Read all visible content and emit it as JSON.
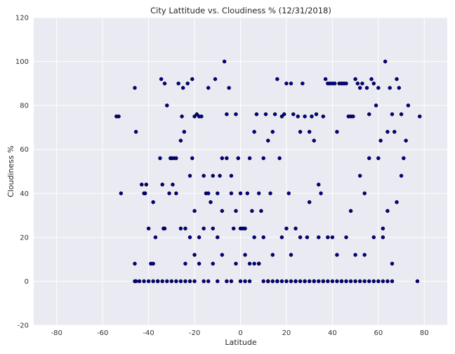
{
  "chart_data": {
    "type": "scatter",
    "title": "City Lattitude vs. Cloudiness % (12/31/2018)",
    "xlabel": "Latitude",
    "ylabel": "Cloudiness %",
    "xlim": [
      -90,
      90
    ],
    "ylim": [
      -20,
      120
    ],
    "xticks": [
      -80,
      -60,
      -40,
      -20,
      0,
      20,
      40,
      60,
      80
    ],
    "yticks": [
      -20,
      0,
      20,
      40,
      60,
      80,
      100,
      120
    ],
    "grid": true,
    "background_color": "#eaeaf2",
    "grid_color": "#ffffff",
    "marker_color": "#00008b",
    "marker_edge_color": "#000000",
    "points": [
      [
        -54,
        75
      ],
      [
        -53,
        75
      ],
      [
        -52,
        40
      ],
      [
        -46,
        88
      ],
      [
        -45.5,
        68
      ],
      [
        -46,
        8
      ],
      [
        -46,
        0
      ],
      [
        -45.5,
        0
      ],
      [
        -43,
        44
      ],
      [
        -42,
        40
      ],
      [
        -41.5,
        40
      ],
      [
        -41,
        44
      ],
      [
        -40,
        24
      ],
      [
        -39,
        8
      ],
      [
        -38,
        8
      ],
      [
        -38,
        36
      ],
      [
        -37,
        20
      ],
      [
        -36,
        0
      ],
      [
        -35,
        56
      ],
      [
        -34.5,
        92
      ],
      [
        -34,
        44
      ],
      [
        -33.5,
        24
      ],
      [
        -33,
        24
      ],
      [
        -33,
        90
      ],
      [
        -32,
        80
      ],
      [
        -31,
        40
      ],
      [
        -30.5,
        56
      ],
      [
        -30,
        56
      ],
      [
        -29.5,
        44
      ],
      [
        -29,
        56
      ],
      [
        -28,
        56
      ],
      [
        -27,
        90
      ],
      [
        -26,
        64
      ],
      [
        -25.5,
        75
      ],
      [
        -25,
        88
      ],
      [
        -24.5,
        68
      ],
      [
        -24,
        24
      ],
      [
        -23,
        90
      ],
      [
        -22,
        48
      ],
      [
        -21,
        56
      ],
      [
        -21,
        92
      ],
      [
        -20,
        75
      ],
      [
        -20,
        32
      ],
      [
        -19,
        76
      ],
      [
        -18,
        75
      ],
      [
        -17,
        75
      ],
      [
        -16,
        48
      ],
      [
        -15,
        40
      ],
      [
        -14,
        88
      ],
      [
        -13,
        36
      ],
      [
        -12,
        48
      ],
      [
        -11,
        92
      ],
      [
        -10,
        40
      ],
      [
        -9,
        48
      ],
      [
        -8,
        56
      ],
      [
        -7,
        100
      ],
      [
        -6,
        76
      ],
      [
        -5,
        88
      ],
      [
        -4,
        48
      ],
      [
        -3,
        24
      ],
      [
        -2,
        76
      ],
      [
        -1,
        56
      ],
      [
        0,
        24
      ],
      [
        1,
        24
      ],
      [
        2,
        24
      ],
      [
        3,
        40
      ],
      [
        4,
        56
      ],
      [
        5,
        32
      ],
      [
        6,
        68
      ],
      [
        7,
        76
      ],
      [
        8,
        40
      ],
      [
        9,
        32
      ],
      [
        10,
        56
      ],
      [
        11,
        76
      ],
      [
        12,
        64
      ],
      [
        13,
        40
      ],
      [
        14,
        68
      ],
      [
        15,
        76
      ],
      [
        16,
        92
      ],
      [
        17,
        56
      ],
      [
        18,
        75
      ],
      [
        19,
        76
      ],
      [
        20,
        90
      ],
      [
        21,
        40
      ],
      [
        22,
        90
      ],
      [
        23,
        76
      ],
      [
        24,
        24
      ],
      [
        25,
        75
      ],
      [
        26,
        68
      ],
      [
        27,
        90
      ],
      [
        28,
        75
      ],
      [
        29,
        20
      ],
      [
        30,
        68
      ],
      [
        31,
        75
      ],
      [
        32,
        64
      ],
      [
        33,
        76
      ],
      [
        34,
        44
      ],
      [
        35,
        40
      ],
      [
        36,
        75
      ],
      [
        37,
        92
      ],
      [
        38,
        90
      ],
      [
        39,
        90
      ],
      [
        40,
        90
      ],
      [
        41,
        90
      ],
      [
        42,
        68
      ],
      [
        43,
        90
      ],
      [
        44,
        90
      ],
      [
        45,
        90
      ],
      [
        46,
        90
      ],
      [
        47,
        75
      ],
      [
        48,
        75
      ],
      [
        49,
        75
      ],
      [
        50,
        92
      ],
      [
        51,
        90
      ],
      [
        52,
        88
      ],
      [
        53,
        90
      ],
      [
        54,
        40
      ],
      [
        55,
        88
      ],
      [
        56,
        76
      ],
      [
        57,
        92
      ],
      [
        58,
        90
      ],
      [
        59,
        80
      ],
      [
        60,
        88
      ],
      [
        61,
        64
      ],
      [
        62,
        24
      ],
      [
        63,
        100
      ],
      [
        64,
        68
      ],
      [
        65,
        88
      ],
      [
        66,
        76
      ],
      [
        67,
        68
      ],
      [
        68,
        92
      ],
      [
        69,
        88
      ],
      [
        70,
        76
      ],
      [
        71,
        56
      ],
      [
        72,
        64
      ],
      [
        73,
        80
      ],
      [
        78,
        75
      ],
      [
        77,
        0
      ],
      [
        -30,
        0
      ],
      [
        -28,
        0
      ],
      [
        -26,
        0
      ],
      [
        -24,
        0
      ],
      [
        -22,
        0
      ],
      [
        -20,
        0
      ],
      [
        -18,
        8
      ],
      [
        -16,
        0
      ],
      [
        -14,
        0
      ],
      [
        -12,
        8
      ],
      [
        -10,
        0
      ],
      [
        -8,
        12
      ],
      [
        -6,
        0
      ],
      [
        -4,
        0
      ],
      [
        -2,
        8
      ],
      [
        0,
        0
      ],
      [
        2,
        0
      ],
      [
        4,
        0
      ],
      [
        6,
        8
      ],
      [
        8,
        8
      ],
      [
        10,
        0
      ],
      [
        12,
        0
      ],
      [
        14,
        0
      ],
      [
        16,
        0
      ],
      [
        18,
        0
      ],
      [
        20,
        0
      ],
      [
        22,
        0
      ],
      [
        24,
        0
      ],
      [
        26,
        0
      ],
      [
        28,
        0
      ],
      [
        30,
        0
      ],
      [
        32,
        0
      ],
      [
        34,
        0
      ],
      [
        36,
        0
      ],
      [
        38,
        0
      ],
      [
        40,
        0
      ],
      [
        42,
        0
      ],
      [
        44,
        0
      ],
      [
        46,
        0
      ],
      [
        48,
        0
      ],
      [
        50,
        0
      ],
      [
        52,
        0
      ],
      [
        54,
        0
      ],
      [
        56,
        0
      ],
      [
        58,
        0
      ],
      [
        60,
        0
      ],
      [
        62,
        0
      ],
      [
        64,
        0
      ],
      [
        66,
        0
      ],
      [
        -26,
        24
      ],
      [
        -22,
        20
      ],
      [
        -18,
        20
      ],
      [
        -14,
        40
      ],
      [
        -10,
        20
      ],
      [
        -6,
        56
      ],
      [
        -2,
        32
      ],
      [
        2,
        12
      ],
      [
        6,
        20
      ],
      [
        10,
        20
      ],
      [
        14,
        12
      ],
      [
        18,
        20
      ],
      [
        22,
        12
      ],
      [
        26,
        20
      ],
      [
        30,
        36
      ],
      [
        34,
        20
      ],
      [
        38,
        20
      ],
      [
        42,
        12
      ],
      [
        46,
        20
      ],
      [
        50,
        12
      ],
      [
        54,
        12
      ],
      [
        58,
        20
      ],
      [
        62,
        20
      ],
      [
        66,
        8
      ],
      [
        -36,
        0
      ],
      [
        -34,
        0
      ],
      [
        -32,
        0
      ],
      [
        -38,
        0
      ],
      [
        -40,
        0
      ],
      [
        -42,
        0
      ],
      [
        -44,
        0
      ],
      [
        -28,
        40
      ],
      [
        -24,
        8
      ],
      [
        -20,
        12
      ],
      [
        -16,
        24
      ],
      [
        -12,
        24
      ],
      [
        -8,
        32
      ],
      [
        -4,
        40
      ],
      [
        0,
        40
      ],
      [
        4,
        8
      ],
      [
        8,
        8
      ],
      [
        12,
        0
      ],
      [
        16,
        0
      ],
      [
        20,
        24
      ],
      [
        24,
        0
      ],
      [
        28,
        0
      ],
      [
        32,
        0
      ],
      [
        36,
        0
      ],
      [
        40,
        20
      ],
      [
        44,
        0
      ],
      [
        48,
        32
      ],
      [
        52,
        48
      ],
      [
        56,
        56
      ],
      [
        60,
        56
      ],
      [
        64,
        32
      ],
      [
        68,
        36
      ],
      [
        70,
        48
      ]
    ]
  }
}
